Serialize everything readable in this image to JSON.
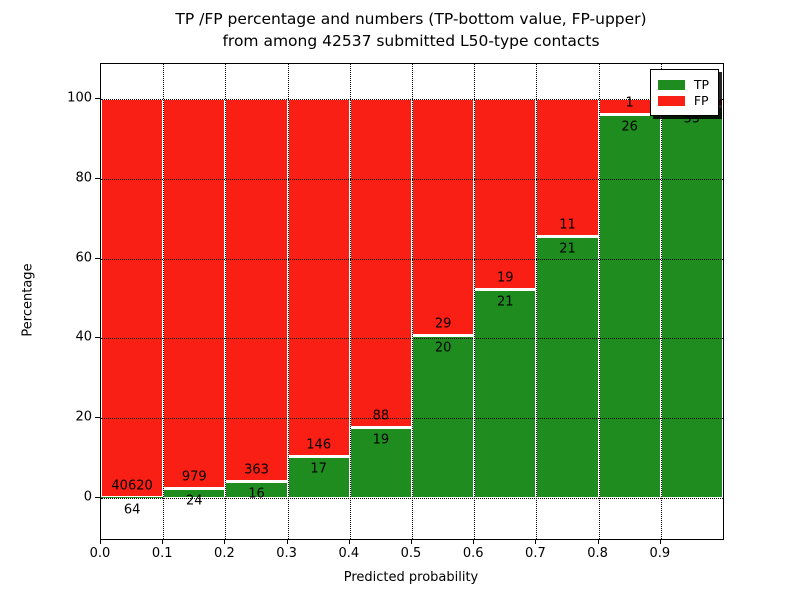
{
  "title": {
    "line1": "TP /FP percentage and numbers (TP-bottom value, FP-upper)",
    "line2": "from among 42537 submitted L50-type contacts"
  },
  "colors": {
    "tp_green": "#1e8c1e",
    "fp_red": "#fa1f14",
    "grid": "#000000",
    "bar_edge": "#ffffff",
    "background": "#ffffff"
  },
  "chart_data": {
    "type": "bar",
    "stacked": true,
    "title": "TP /FP percentage and numbers (TP-bottom value, FP-upper) from among 42537 submitted L50-type contacts",
    "xlabel": "Predicted probability",
    "ylabel": "Percentage",
    "total_submitted": 42537,
    "bins": [
      "0.0-0.1",
      "0.1-0.2",
      "0.2-0.3",
      "0.3-0.4",
      "0.4-0.5",
      "0.5-0.6",
      "0.6-0.7",
      "0.7-0.8",
      "0.8-0.9",
      "0.9-1.0"
    ],
    "x_ticks": [
      "0.0",
      "0.1",
      "0.2",
      "0.3",
      "0.4",
      "0.5",
      "0.6",
      "0.7",
      "0.8",
      "0.9"
    ],
    "y_ticks": [
      0,
      20,
      40,
      60,
      80,
      100
    ],
    "xlim": [
      0.0,
      1.0
    ],
    "ylim": [
      -10.5,
      109
    ],
    "grid": "dotted, drawn above bars",
    "legend_position": "upper right, white box with black border and shadow",
    "series": [
      {
        "name": "TP",
        "role": "bottom segment",
        "values": [
          64,
          24,
          16,
          17,
          19,
          20,
          21,
          21,
          26,
          55
        ]
      },
      {
        "name": "FP",
        "role": "upper segment",
        "values": [
          40620,
          979,
          363,
          146,
          88,
          29,
          19,
          11,
          1,
          null
        ]
      }
    ],
    "tp_percent": [
      0.16,
      2.39,
      4.22,
      10.43,
      17.76,
      40.82,
      52.5,
      65.63,
      96.3,
      98.2
    ],
    "notes": "Last bin: TP count label partially occluded by legend; FP count label fully occluded by legend."
  }
}
